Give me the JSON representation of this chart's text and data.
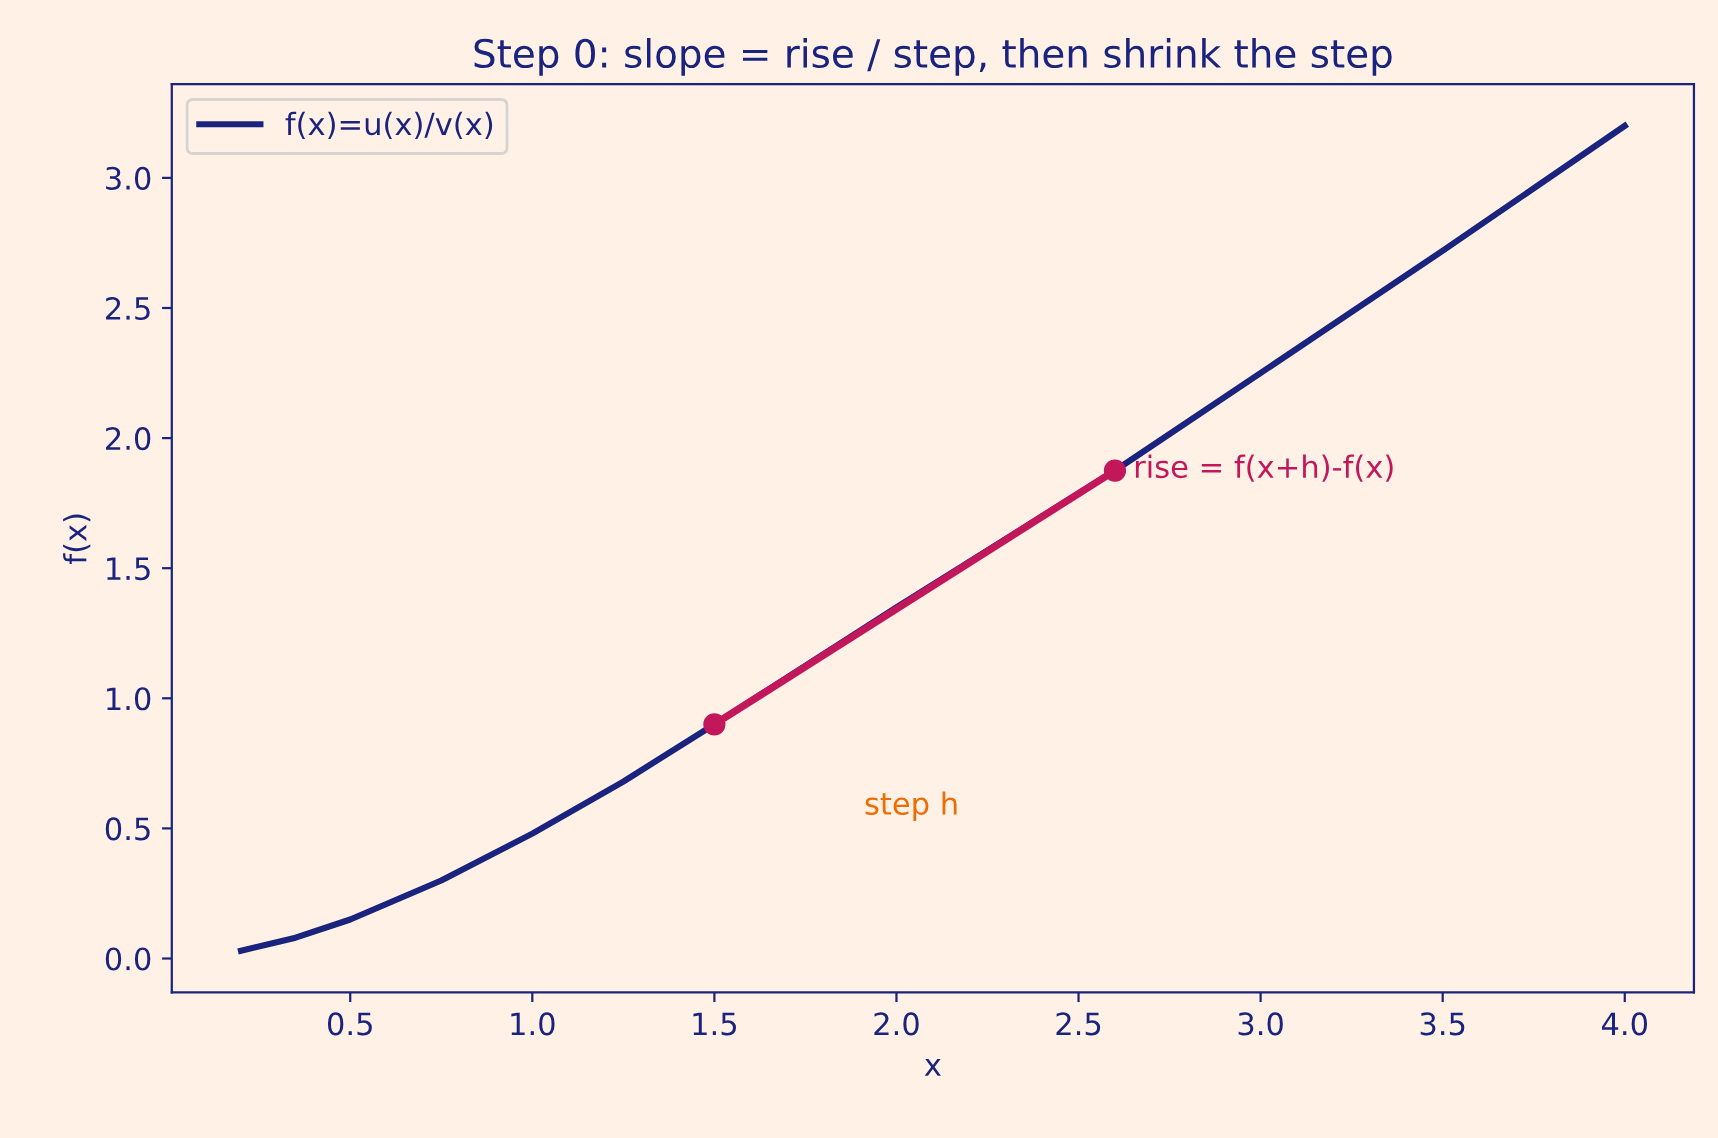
{
  "chart_data": {
    "type": "line",
    "title": "Step 0: slope = rise / step, then shrink the step",
    "xlabel": "x",
    "ylabel": "f(x)",
    "series": [
      {
        "name": "f(x)=u(x)/v(x)",
        "color": "#1a237e",
        "x": [
          0.2,
          0.35,
          0.5,
          0.75,
          1.0,
          1.25,
          1.5,
          2.0,
          2.6,
          3.0,
          3.5,
          4.0
        ],
        "values": [
          0.03,
          0.08,
          0.15,
          0.3,
          0.48,
          0.68,
          0.9,
          1.35,
          1.875,
          2.25,
          2.72,
          3.2
        ],
        "marker": "none"
      },
      {
        "color": "#c2185b",
        "x": [
          1.5,
          2.6
        ],
        "values": [
          0.9,
          1.875
        ],
        "marker": "circle"
      }
    ],
    "annotations": [
      {
        "text": "rise = f(x+h)-f(x)",
        "x": 2.65,
        "y": 1.88
      },
      "step h"
    ],
    "xlim": [
      0.01,
      4.19
    ],
    "ylim": [
      -0.13,
      3.36
    ],
    "xticks": [
      0.5,
      {
        "value": 1,
        "label": "1.0"
      },
      1.5,
      {
        "value": 2,
        "label": "2.0"
      },
      2.5,
      {
        "value": 3,
        "label": "3.0"
      },
      3.5,
      {
        "value": 4,
        "label": "4.0"
      }
    ],
    "yticks": [
      {
        "value": 0,
        "label": "0.0"
      },
      0.5,
      {
        "value": 1,
        "label": "1.0"
      },
      1.5,
      {
        "value": 2,
        "label": "2.0"
      },
      2.5,
      {
        "value": 3,
        "label": "3.0"
      }
    ],
    "grid": false,
    "legend": "top left"
  }
}
